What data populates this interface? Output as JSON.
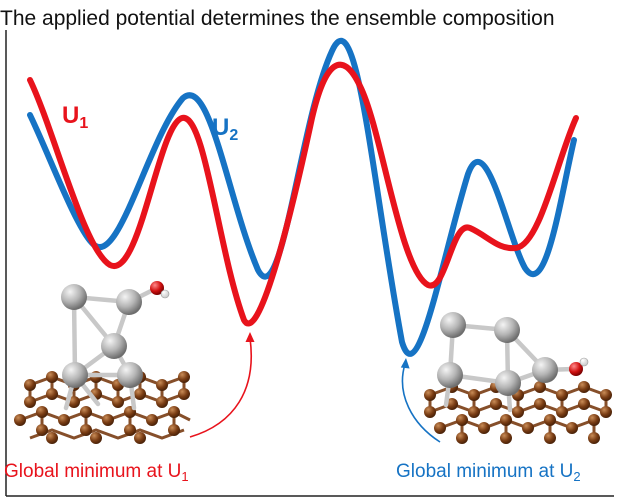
{
  "title": "The applied potential determines the ensemble composition",
  "labels": {
    "u1": {
      "base": "U",
      "sub": "1",
      "color": "#e8131c"
    },
    "u2": {
      "base": "U",
      "sub": "2",
      "color": "#1673c4"
    }
  },
  "captions": {
    "red": {
      "text": "Global minimum at U",
      "sub": "1",
      "color": "#e8131c"
    },
    "blue": {
      "text": "Global minimum at U",
      "sub": "2",
      "color": "#1673c4"
    }
  },
  "colors": {
    "curve_u1": "#e8131c",
    "curve_u2": "#1673c4",
    "support": "#7a3d14",
    "cluster_atom": "#a9a9a9",
    "oxygen": "#d01010",
    "hydrogen": "#f2f2f2",
    "axis": "#222222"
  },
  "icons": [
    "cluster-structure-left-icon",
    "cluster-structure-right-icon",
    "arrow-red",
    "arrow-blue"
  ]
}
